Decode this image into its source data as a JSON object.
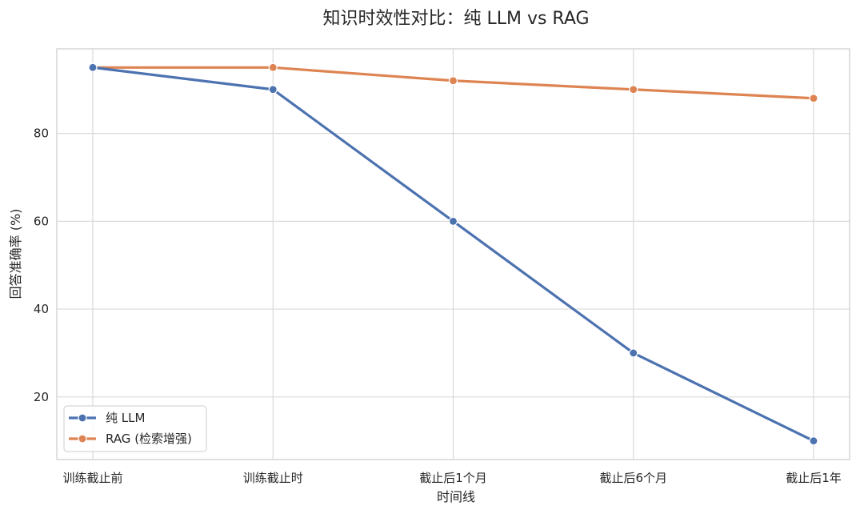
{
  "chart_data": {
    "type": "line",
    "title": "知识时效性对比：纯 LLM vs RAG",
    "xlabel": "时间线",
    "ylabel": "回答准确率 (%)",
    "categories": [
      "训练截止前",
      "训练截止时",
      "截止后1个月",
      "截止后6个月",
      "截止后1年"
    ],
    "series": [
      {
        "name": "纯 LLM",
        "values": [
          95,
          90,
          60,
          30,
          10
        ],
        "color": "#4c72b0"
      },
      {
        "name": "RAG (检索增强)",
        "values": [
          95,
          95,
          92,
          90,
          88
        ],
        "color": "#dd8452"
      }
    ],
    "ylim": [
      5.75,
      99.25
    ],
    "yticks": [
      20,
      40,
      60,
      80
    ],
    "grid": true,
    "legend_position": "lower-left",
    "marker": "circle"
  }
}
